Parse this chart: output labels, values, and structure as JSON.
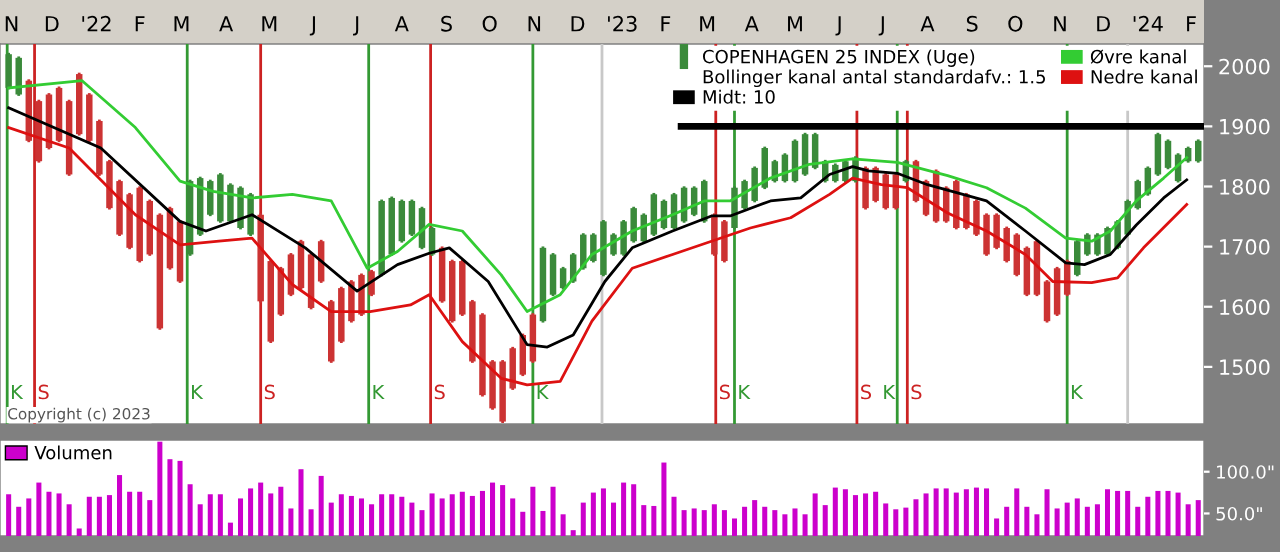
{
  "chart_data": [
    {
      "type": "candlestick",
      "xlim": [
        "2021-11-09",
        "2024-02-23"
      ],
      "xticks": [
        {
          "value": "2021-11-17",
          "label": "N"
        },
        {
          "value": "2021-12-15",
          "label": "D"
        },
        {
          "value": "2022-01-15",
          "label": "'22"
        },
        {
          "value": "2022-02-14",
          "label": "F"
        },
        {
          "value": "2022-03-15",
          "label": "M"
        },
        {
          "value": "2022-04-15",
          "label": "A"
        },
        {
          "value": "2022-05-15",
          "label": "M"
        },
        {
          "value": "2022-06-15",
          "label": "J"
        },
        {
          "value": "2022-07-15",
          "label": "J"
        },
        {
          "value": "2022-08-15",
          "label": "A"
        },
        {
          "value": "2022-09-15",
          "label": "S"
        },
        {
          "value": "2022-10-15",
          "label": "O"
        },
        {
          "value": "2022-11-15",
          "label": "N"
        },
        {
          "value": "2022-12-15",
          "label": "D"
        },
        {
          "value": "2023-01-15",
          "label": "'23"
        },
        {
          "value": "2023-02-14",
          "label": "F"
        },
        {
          "value": "2023-03-15",
          "label": "M"
        },
        {
          "value": "2023-04-15",
          "label": "A"
        },
        {
          "value": "2023-05-15",
          "label": "M"
        },
        {
          "value": "2023-06-15",
          "label": "J"
        },
        {
          "value": "2023-07-15",
          "label": "J"
        },
        {
          "value": "2023-08-15",
          "label": "A"
        },
        {
          "value": "2023-09-15",
          "label": "S"
        },
        {
          "value": "2023-10-15",
          "label": "O"
        },
        {
          "value": "2023-11-15",
          "label": "N"
        },
        {
          "value": "2023-12-15",
          "label": "D"
        },
        {
          "value": "2024-01-15",
          "label": "'24"
        },
        {
          "value": "2024-02-14",
          "label": "F"
        }
      ],
      "ylim": [
        1405,
        2037
      ],
      "yticks": [
        1500,
        1600,
        1700,
        1800,
        1900,
        2000
      ],
      "legend": "top right",
      "legend_title": "Bollinger kanal antal standardafv.: 1.5",
      "annotations": [
        "Copyright (c) 2023"
      ],
      "ref_lines": [
        {
          "axis": "x",
          "value": "2023-01-01",
          "label": null,
          "color": "#c8c8c8"
        },
        {
          "axis": "x",
          "value": "2024-01-01",
          "label": null,
          "color": "#c8c8c8"
        },
        {
          "axis": "x",
          "value": "2021-11-14",
          "label": "K",
          "color": "#339933"
        },
        {
          "axis": "x",
          "value": "2021-12-03",
          "label": "S",
          "color": "#cc2222"
        },
        {
          "axis": "x",
          "value": "2022-03-19",
          "label": "K",
          "color": "#339933"
        },
        {
          "axis": "x",
          "value": "2022-05-09",
          "label": "S",
          "color": "#cc2222"
        },
        {
          "axis": "x",
          "value": "2022-07-23",
          "label": "K",
          "color": "#339933"
        },
        {
          "axis": "x",
          "value": "2022-09-04",
          "label": "S",
          "color": "#cc2222"
        },
        {
          "axis": "x",
          "value": "2022-11-14",
          "label": "K",
          "color": "#339933"
        },
        {
          "axis": "x",
          "value": "2023-03-21",
          "label": "S",
          "color": "#cc2222"
        },
        {
          "axis": "x",
          "value": "2023-04-03",
          "label": "K",
          "color": "#339933"
        },
        {
          "axis": "x",
          "value": "2023-06-27",
          "label": "S",
          "color": "#cc2222"
        },
        {
          "axis": "x",
          "value": "2023-07-25",
          "label": "K",
          "color": "#339933"
        },
        {
          "axis": "x",
          "value": "2023-08-01",
          "label": "S",
          "color": "#cc2222"
        },
        {
          "axis": "x",
          "value": "2023-11-20",
          "label": "K",
          "color": "#339933"
        }
      ],
      "series": [
        {
          "type": "candlestick",
          "name": "COPENHAGEN 25 INDEX (Uge)",
          "x": [
            "2021-11-15",
            "2021-11-22",
            "2021-11-29",
            "2021-12-06",
            "2021-12-13",
            "2021-12-20",
            "2021-12-27",
            "2022-01-03",
            "2022-01-10",
            "2022-01-17",
            "2022-01-24",
            "2022-01-31",
            "2022-02-07",
            "2022-02-14",
            "2022-02-21",
            "2022-02-28",
            "2022-03-07",
            "2022-03-14",
            "2022-03-21",
            "2022-03-28",
            "2022-04-04",
            "2022-04-11",
            "2022-04-18",
            "2022-04-25",
            "2022-05-02",
            "2022-05-09",
            "2022-05-16",
            "2022-05-23",
            "2022-05-30",
            "2022-06-06",
            "2022-06-13",
            "2022-06-20",
            "2022-06-27",
            "2022-07-04",
            "2022-07-11",
            "2022-07-18",
            "2022-07-25",
            "2022-08-01",
            "2022-08-08",
            "2022-08-15",
            "2022-08-22",
            "2022-08-29",
            "2022-09-05",
            "2022-09-12",
            "2022-09-19",
            "2022-09-26",
            "2022-10-03",
            "2022-10-10",
            "2022-10-17",
            "2022-10-24",
            "2022-10-31",
            "2022-11-07",
            "2022-11-14",
            "2022-11-21",
            "2022-11-28",
            "2022-12-05",
            "2022-12-12",
            "2022-12-19",
            "2022-12-26",
            "2023-01-02",
            "2023-01-09",
            "2023-01-16",
            "2023-01-23",
            "2023-01-30",
            "2023-02-06",
            "2023-02-13",
            "2023-02-20",
            "2023-02-27",
            "2023-03-06",
            "2023-03-13",
            "2023-03-20",
            "2023-03-27",
            "2023-04-03",
            "2023-04-10",
            "2023-04-17",
            "2023-04-24",
            "2023-05-01",
            "2023-05-08",
            "2023-05-15",
            "2023-05-22",
            "2023-05-29",
            "2023-06-05",
            "2023-06-12",
            "2023-06-19",
            "2023-06-26",
            "2023-07-03",
            "2023-07-10",
            "2023-07-17",
            "2023-07-24",
            "2023-07-31",
            "2023-08-07",
            "2023-08-14",
            "2023-08-21",
            "2023-08-28",
            "2023-09-04",
            "2023-09-11",
            "2023-09-18",
            "2023-09-25",
            "2023-10-02",
            "2023-10-09",
            "2023-10-16",
            "2023-10-23",
            "2023-10-30",
            "2023-11-06",
            "2023-11-13",
            "2023-11-20",
            "2023-11-27",
            "2023-12-04",
            "2023-12-11",
            "2023-12-18",
            "2023-12-25",
            "2024-01-01",
            "2024-01-08",
            "2024-01-15",
            "2024-01-22",
            "2024-01-29",
            "2024-02-05",
            "2024-02-12",
            "2024-02-19"
          ],
          "ohlc": [
            [
              1964,
              2020,
              1964,
              2020
            ],
            [
              1953,
              2014,
              1953,
              2014
            ],
            [
              1976,
              1976,
              1876,
              1876
            ],
            [
              1942,
              1942,
              1842,
              1842
            ],
            [
              1953,
              1953,
              1864,
              1864
            ],
            [
              1964,
              1964,
              1876,
              1876
            ],
            [
              1942,
              1942,
              1820,
              1820
            ],
            [
              1987,
              1987,
              1887,
              1887
            ],
            [
              1953,
              1953,
              1876,
              1876
            ],
            [
              1909,
              1909,
              1820,
              1820
            ],
            [
              1842,
              1842,
              1764,
              1764
            ],
            [
              1809,
              1809,
              1720,
              1720
            ],
            [
              1787,
              1787,
              1698,
              1698
            ],
            [
              1798,
              1798,
              1676,
              1676
            ],
            [
              1776,
              1776,
              1687,
              1687
            ],
            [
              1753,
              1753,
              1564,
              1564
            ],
            [
              1764,
              1764,
              1664,
              1664
            ],
            [
              1742,
              1742,
              1642,
              1642
            ],
            [
              1687,
              1809,
              1687,
              1809
            ],
            [
              1720,
              1814,
              1720,
              1814
            ],
            [
              1753,
              1809,
              1753,
              1809
            ],
            [
              1742,
              1820,
              1742,
              1820
            ],
            [
              1742,
              1803,
              1742,
              1803
            ],
            [
              1731,
              1798,
              1731,
              1798
            ],
            [
              1720,
              1787,
              1720,
              1787
            ],
            [
              1753,
              1753,
              1609,
              1609
            ],
            [
              1676,
              1676,
              1542,
              1542
            ],
            [
              1664,
              1664,
              1587,
              1587
            ],
            [
              1687,
              1687,
              1620,
              1620
            ],
            [
              1709,
              1709,
              1631,
              1631
            ],
            [
              1687,
              1687,
              1598,
              1598
            ],
            [
              1709,
              1709,
              1642,
              1642
            ],
            [
              1609,
              1609,
              1509,
              1509
            ],
            [
              1631,
              1631,
              1542,
              1542
            ],
            [
              1642,
              1642,
              1576,
              1576
            ],
            [
              1653,
              1653,
              1587,
              1587
            ],
            [
              1659,
              1659,
              1620,
              1620
            ],
            [
              1653,
              1776,
              1653,
              1776
            ],
            [
              1687,
              1781,
              1687,
              1781
            ],
            [
              1709,
              1776,
              1709,
              1776
            ],
            [
              1720,
              1776,
              1720,
              1776
            ],
            [
              1698,
              1764,
              1698,
              1764
            ],
            [
              1687,
              1731,
              1687,
              1731
            ],
            [
              1698,
              1698,
              1609,
              1609
            ],
            [
              1676,
              1676,
              1576,
              1576
            ],
            [
              1676,
              1676,
              1587,
              1587
            ],
            [
              1609,
              1609,
              1509,
              1509
            ],
            [
              1587,
              1587,
              1453,
              1453
            ],
            [
              1509,
              1509,
              1431,
              1431
            ],
            [
              1509,
              1509,
              1409,
              1409
            ],
            [
              1531,
              1531,
              1464,
              1464
            ],
            [
              1553,
              1553,
              1487,
              1487
            ],
            [
              1587,
              1587,
              1509,
              1509
            ],
            [
              1576,
              1698,
              1576,
              1698
            ],
            [
              1620,
              1687,
              1620,
              1687
            ],
            [
              1631,
              1664,
              1631,
              1664
            ],
            [
              1642,
              1687,
              1642,
              1687
            ],
            [
              1664,
              1720,
              1664,
              1720
            ],
            [
              1676,
              1720,
              1676,
              1720
            ],
            [
              1653,
              1742,
              1653,
              1742
            ],
            [
              1687,
              1720,
              1687,
              1720
            ],
            [
              1687,
              1742,
              1687,
              1742
            ],
            [
              1709,
              1764,
              1709,
              1764
            ],
            [
              1709,
              1753,
              1709,
              1753
            ],
            [
              1720,
              1787,
              1720,
              1787
            ],
            [
              1731,
              1776,
              1731,
              1776
            ],
            [
              1731,
              1787,
              1731,
              1787
            ],
            [
              1742,
              1798,
              1742,
              1798
            ],
            [
              1753,
              1798,
              1753,
              1798
            ],
            [
              1742,
              1809,
              1742,
              1809
            ],
            [
              1753,
              1753,
              1687,
              1687
            ],
            [
              1742,
              1742,
              1676,
              1676
            ],
            [
              1731,
              1798,
              1731,
              1798
            ],
            [
              1764,
              1809,
              1764,
              1809
            ],
            [
              1776,
              1831,
              1776,
              1831
            ],
            [
              1798,
              1864,
              1798,
              1864
            ],
            [
              1809,
              1842,
              1809,
              1842
            ],
            [
              1809,
              1853,
              1809,
              1853
            ],
            [
              1809,
              1876,
              1809,
              1876
            ],
            [
              1820,
              1887,
              1820,
              1887
            ],
            [
              1831,
              1887,
              1831,
              1887
            ],
            [
              1809,
              1842,
              1809,
              1842
            ],
            [
              1809,
              1836,
              1809,
              1836
            ],
            [
              1809,
              1842,
              1809,
              1842
            ],
            [
              1809,
              1848,
              1809,
              1848
            ],
            [
              1831,
              1831,
              1764,
              1764
            ],
            [
              1831,
              1831,
              1776,
              1776
            ],
            [
              1820,
              1820,
              1764,
              1764
            ],
            [
              1820,
              1820,
              1764,
              1764
            ],
            [
              1809,
              1842,
              1809,
              1842
            ],
            [
              1842,
              1842,
              1776,
              1776
            ],
            [
              1809,
              1809,
              1753,
              1753
            ],
            [
              1826,
              1826,
              1742,
              1742
            ],
            [
              1798,
              1798,
              1742,
              1742
            ],
            [
              1809,
              1809,
              1731,
              1731
            ],
            [
              1787,
              1787,
              1731,
              1731
            ],
            [
              1776,
              1776,
              1720,
              1720
            ],
            [
              1753,
              1753,
              1687,
              1687
            ],
            [
              1753,
              1753,
              1698,
              1698
            ],
            [
              1731,
              1731,
              1676,
              1676
            ],
            [
              1720,
              1720,
              1653,
              1653
            ],
            [
              1698,
              1698,
              1620,
              1620
            ],
            [
              1709,
              1709,
              1620,
              1620
            ],
            [
              1642,
              1642,
              1576,
              1576
            ],
            [
              1664,
              1664,
              1587,
              1587
            ],
            [
              1676,
              1676,
              1620,
              1620
            ],
            [
              1653,
              1709,
              1653,
              1709
            ],
            [
              1687,
              1720,
              1687,
              1720
            ],
            [
              1687,
              1720,
              1687,
              1720
            ],
            [
              1687,
              1731,
              1687,
              1731
            ],
            [
              1698,
              1742,
              1698,
              1742
            ],
            [
              1720,
              1776,
              1720,
              1776
            ],
            [
              1764,
              1809,
              1764,
              1809
            ],
            [
              1787,
              1831,
              1787,
              1831
            ],
            [
              1820,
              1887,
              1820,
              1887
            ],
            [
              1831,
              1876,
              1831,
              1876
            ],
            [
              1809,
              1853,
              1809,
              1853
            ],
            [
              1842,
              1864,
              1842,
              1864
            ],
            [
              1842,
              1876,
              1842,
              1876
            ]
          ],
          "colors": [
            "#3a8a3a",
            "#3a8a3a",
            "#cc3333",
            "#cc3333",
            "#cc3333",
            "#cc3333",
            "#cc3333",
            "#cc3333",
            "#cc3333",
            "#cc3333",
            "#cc3333",
            "#cc3333",
            "#cc3333",
            "#cc3333",
            "#cc3333",
            "#cc3333",
            "#cc3333",
            "#cc3333",
            "#3a8a3a",
            "#3a8a3a",
            "#3a8a3a",
            "#3a8a3a",
            "#3a8a3a",
            "#3a8a3a",
            "#3a8a3a",
            "#cc3333",
            "#cc3333",
            "#cc3333",
            "#cc3333",
            "#cc3333",
            "#cc3333",
            "#cc3333",
            "#cc3333",
            "#cc3333",
            "#cc3333",
            "#cc3333",
            "#cc3333",
            "#3a8a3a",
            "#3a8a3a",
            "#3a8a3a",
            "#3a8a3a",
            "#3a8a3a",
            "#3a8a3a",
            "#cc3333",
            "#cc3333",
            "#cc3333",
            "#cc3333",
            "#cc3333",
            "#cc3333",
            "#cc3333",
            "#cc3333",
            "#cc3333",
            "#cc3333",
            "#3a8a3a",
            "#3a8a3a",
            "#3a8a3a",
            "#3a8a3a",
            "#3a8a3a",
            "#3a8a3a",
            "#3a8a3a",
            "#3a8a3a",
            "#3a8a3a",
            "#3a8a3a",
            "#3a8a3a",
            "#3a8a3a",
            "#3a8a3a",
            "#3a8a3a",
            "#3a8a3a",
            "#3a8a3a",
            "#3a8a3a",
            "#cc3333",
            "#cc3333",
            "#3a8a3a",
            "#3a8a3a",
            "#3a8a3a",
            "#3a8a3a",
            "#3a8a3a",
            "#3a8a3a",
            "#3a8a3a",
            "#3a8a3a",
            "#3a8a3a",
            "#3a8a3a",
            "#3a8a3a",
            "#3a8a3a",
            "#3a8a3a",
            "#cc3333",
            "#cc3333",
            "#cc3333",
            "#cc3333",
            "#3a8a3a",
            "#cc3333",
            "#cc3333",
            "#cc3333",
            "#cc3333",
            "#cc3333",
            "#cc3333",
            "#cc3333",
            "#cc3333",
            "#cc3333",
            "#cc3333",
            "#cc3333",
            "#cc3333",
            "#cc3333",
            "#cc3333",
            "#cc3333",
            "#cc3333",
            "#3a8a3a",
            "#3a8a3a",
            "#3a8a3a",
            "#3a8a3a",
            "#3a8a3a",
            "#3a8a3a",
            "#3a8a3a",
            "#3a8a3a",
            "#3a8a3a",
            "#3a8a3a",
            "#3a8a3a",
            "#3a8a3a",
            "#3a8a3a"
          ]
        },
        {
          "type": "line",
          "name": "Midt: 10",
          "color": "#000000",
          "x": [
            "2021-11-15",
            "2022-01-18",
            "2022-03-14",
            "2022-04-01",
            "2022-05-03",
            "2022-06-09",
            "2022-07-15",
            "2022-08-12",
            "2022-09-03",
            "2022-09-17",
            "2022-10-14",
            "2022-11-10",
            "2022-11-24",
            "2022-12-12",
            "2023-01-03",
            "2023-01-22",
            "2023-02-19",
            "2023-03-18",
            "2023-03-31",
            "2023-04-28",
            "2023-05-19",
            "2023-06-08",
            "2023-06-24",
            "2023-07-05",
            "2023-07-25",
            "2023-08-15",
            "2023-09-25",
            "2023-10-22",
            "2023-11-19",
            "2023-12-02",
            "2023-12-20",
            "2024-01-07",
            "2024-01-26",
            "2024-02-11"
          ],
          "values": [
            1931,
            1864,
            1742,
            1726,
            1753,
            1698,
            1626,
            1670,
            1689,
            1698,
            1642,
            1537,
            1533,
            1553,
            1642,
            1698,
            1726,
            1751,
            1751,
            1776,
            1781,
            1820,
            1833,
            1826,
            1822,
            1803,
            1776,
            1726,
            1673,
            1670,
            1687,
            1736,
            1781,
            1811
          ]
        },
        {
          "type": "line",
          "name": "Øvre kanal",
          "color": "#33cc33",
          "x": [
            "2021-11-15",
            "2022-01-05",
            "2022-02-11",
            "2022-03-14",
            "2022-04-06",
            "2022-05-03",
            "2022-05-31",
            "2022-06-27",
            "2022-07-22",
            "2022-08-12",
            "2022-09-03",
            "2022-09-26",
            "2022-10-23",
            "2022-11-10",
            "2022-12-03",
            "2022-12-25",
            "2023-01-22",
            "2023-02-19",
            "2023-03-13",
            "2023-03-31",
            "2023-04-28",
            "2023-05-25",
            "2023-06-24",
            "2023-07-25",
            "2023-08-29",
            "2023-09-25",
            "2023-10-22",
            "2023-11-19",
            "2023-12-07",
            "2023-12-20",
            "2024-01-07",
            "2024-01-26",
            "2024-02-11"
          ],
          "values": [
            1964,
            1976,
            1898,
            1809,
            1792,
            1781,
            1787,
            1776,
            1664,
            1692,
            1737,
            1726,
            1653,
            1592,
            1620,
            1687,
            1726,
            1753,
            1776,
            1776,
            1814,
            1837,
            1846,
            1840,
            1818,
            1798,
            1764,
            1714,
            1709,
            1726,
            1776,
            1814,
            1848
          ]
        },
        {
          "type": "line",
          "name": "Nedre kanal",
          "color": "#dd1111",
          "x": [
            "2021-11-15",
            "2021-12-27",
            "2022-02-11",
            "2022-03-14",
            "2022-04-10",
            "2022-05-03",
            "2022-05-31",
            "2022-06-27",
            "2022-07-24",
            "2022-08-21",
            "2022-09-03",
            "2022-09-26",
            "2022-10-23",
            "2022-11-10",
            "2022-12-03",
            "2022-12-25",
            "2023-01-22",
            "2023-02-19",
            "2023-03-18",
            "2023-04-14",
            "2023-05-12",
            "2023-06-08",
            "2023-06-24",
            "2023-07-14",
            "2023-08-01",
            "2023-08-29",
            "2023-09-25",
            "2023-10-22",
            "2023-11-10",
            "2023-12-07",
            "2023-12-25",
            "2024-01-12",
            "2024-02-11"
          ],
          "values": [
            1898,
            1864,
            1753,
            1703,
            1709,
            1714,
            1637,
            1592,
            1592,
            1603,
            1620,
            1542,
            1481,
            1470,
            1476,
            1576,
            1664,
            1687,
            1709,
            1731,
            1748,
            1787,
            1814,
            1803,
            1798,
            1756,
            1726,
            1687,
            1642,
            1640,
            1648,
            1698,
            1770
          ]
        },
        {
          "type": "line",
          "color": "#000000",
          "x": [
            "2023-02-25",
            "2024-02-23"
          ],
          "values": [
            1900,
            1900
          ]
        }
      ]
    },
    {
      "type": "bar",
      "xlim": [
        "2021-11-09",
        "2024-02-23"
      ],
      "ylim": [
        23,
        138
      ],
      "yticks": [
        {
          "value": 100,
          "label": "100.0\""
        },
        {
          "value": 50,
          "label": "50.0\""
        }
      ],
      "tick_labels": "y",
      "legend": "top left",
      "series": [
        {
          "name": "Volumen",
          "color": "#cc00cc",
          "x": [
            "2021-11-15",
            "2021-11-22",
            "2021-11-29",
            "2021-12-06",
            "2021-12-13",
            "2021-12-20",
            "2021-12-27",
            "2022-01-03",
            "2022-01-10",
            "2022-01-17",
            "2022-01-24",
            "2022-01-31",
            "2022-02-07",
            "2022-02-14",
            "2022-02-21",
            "2022-02-28",
            "2022-03-07",
            "2022-03-14",
            "2022-03-21",
            "2022-03-28",
            "2022-04-04",
            "2022-04-11",
            "2022-04-18",
            "2022-04-25",
            "2022-05-02",
            "2022-05-09",
            "2022-05-16",
            "2022-05-23",
            "2022-05-30",
            "2022-06-06",
            "2022-06-13",
            "2022-06-20",
            "2022-06-27",
            "2022-07-04",
            "2022-07-11",
            "2022-07-18",
            "2022-07-25",
            "2022-08-01",
            "2022-08-08",
            "2022-08-15",
            "2022-08-22",
            "2022-08-29",
            "2022-09-05",
            "2022-09-12",
            "2022-09-19",
            "2022-09-26",
            "2022-10-03",
            "2022-10-10",
            "2022-10-17",
            "2022-10-24",
            "2022-10-31",
            "2022-11-07",
            "2022-11-14",
            "2022-11-21",
            "2022-11-28",
            "2022-12-05",
            "2022-12-12",
            "2022-12-19",
            "2022-12-26",
            "2023-01-02",
            "2023-01-09",
            "2023-01-16",
            "2023-01-23",
            "2023-01-30",
            "2023-02-06",
            "2023-02-13",
            "2023-02-20",
            "2023-02-27",
            "2023-03-06",
            "2023-03-13",
            "2023-03-20",
            "2023-03-27",
            "2023-04-03",
            "2023-04-10",
            "2023-04-17",
            "2023-04-24",
            "2023-05-01",
            "2023-05-08",
            "2023-05-15",
            "2023-05-22",
            "2023-05-29",
            "2023-06-05",
            "2023-06-12",
            "2023-06-19",
            "2023-06-26",
            "2023-07-03",
            "2023-07-10",
            "2023-07-17",
            "2023-07-24",
            "2023-07-31",
            "2023-08-07",
            "2023-08-14",
            "2023-08-21",
            "2023-08-28",
            "2023-09-04",
            "2023-09-11",
            "2023-09-18",
            "2023-09-25",
            "2023-10-02",
            "2023-10-09",
            "2023-10-16",
            "2023-10-23",
            "2023-10-30",
            "2023-11-06",
            "2023-11-13",
            "2023-11-20",
            "2023-11-27",
            "2023-12-04",
            "2023-12-11",
            "2023-12-18",
            "2023-12-25",
            "2024-01-01",
            "2024-01-08",
            "2024-01-15",
            "2024-01-22",
            "2024-01-29",
            "2024-02-05",
            "2024-02-12",
            "2024-02-19"
          ],
          "values": [
            73,
            58,
            68,
            87,
            76,
            74,
            61,
            32,
            70,
            70,
            72,
            96,
            76,
            76,
            66,
            136,
            115,
            113,
            85,
            61,
            73,
            73,
            39,
            68,
            80,
            87,
            74,
            82,
            56,
            103,
            55,
            95,
            63,
            73,
            71,
            68,
            61,
            73,
            73,
            70,
            63,
            54,
            74,
            68,
            73,
            76,
            71,
            77,
            87,
            84,
            68,
            52,
            82,
            53,
            82,
            49,
            30,
            63,
            75,
            80,
            63,
            87,
            85,
            60,
            59,
            111,
            70,
            54,
            56,
            54,
            61,
            54,
            44,
            58,
            66,
            58,
            54,
            49,
            56,
            49,
            74,
            60,
            81,
            79,
            72,
            74,
            76,
            62,
            55,
            57,
            67,
            74,
            80,
            80,
            75,
            79,
            81,
            80,
            44,
            58,
            80,
            58,
            49,
            79,
            56,
            63,
            68,
            58,
            61,
            79,
            77,
            77,
            58,
            70,
            77,
            77,
            75,
            61,
            66
          ]
        }
      ]
    }
  ]
}
